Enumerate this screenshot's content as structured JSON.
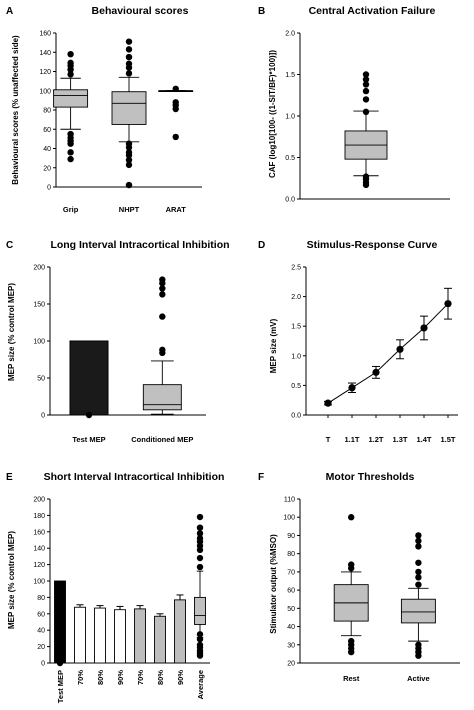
{
  "charts": {
    "chart_data": [
      {
        "id": "A",
        "type": "box",
        "title": "Behavioural scores",
        "ylabel": "Behavioural scores (% unaffected side)",
        "ylim": [
          0,
          160
        ],
        "yticks": [
          "0",
          "20",
          "40",
          "60",
          "80",
          "100",
          "120",
          "140",
          "160"
        ],
        "categories": [
          "Grip",
          "NHPT",
          "ARAT"
        ],
        "boxes": [
          {
            "name": "Grip",
            "q1": 83,
            "median": 95,
            "q3": 101,
            "whisker_low": 60,
            "whisker_high": 113,
            "outliers": [
              29,
              36,
              45,
              48,
              51,
              55,
              117,
              122,
              126,
              129,
              138
            ]
          },
          {
            "name": "NHPT",
            "q1": 65,
            "median": 87,
            "q3": 99,
            "whisker_low": 47,
            "whisker_high": 114,
            "outliers": [
              2,
              23,
              28,
              33,
              36,
              41,
              45,
              118,
              124,
              128,
              135,
              143,
              151
            ]
          },
          {
            "name": "ARAT",
            "q1": 100,
            "median": 100,
            "q3": 100,
            "whisker_low": 100,
            "whisker_high": 100,
            "outliers": [
              52,
              81,
              85,
              88,
              102
            ]
          }
        ]
      },
      {
        "id": "B",
        "type": "box",
        "title": "Central Activation Failure",
        "ylabel": "CAF (log10[100- ((1-SIT/BF)*100)])",
        "ylim": [
          0,
          2.0
        ],
        "yticks": [
          "0.0",
          "0.5",
          "1.0",
          "1.5",
          "2.0"
        ],
        "categories": [
          ""
        ],
        "boxes": [
          {
            "name": "",
            "q1": 0.48,
            "median": 0.65,
            "q3": 0.82,
            "whisker_low": 0.28,
            "whisker_high": 1.06,
            "outliers": [
              0.17,
              0.2,
              0.24,
              0.27,
              1.05,
              1.2,
              1.3,
              1.38,
              1.44,
              1.5
            ]
          }
        ]
      },
      {
        "id": "C",
        "type": "bar+box",
        "title": "Long Interval Intracortical Inhibition",
        "ylabel": "MEP size (% control MEP)",
        "ylim": [
          0,
          200
        ],
        "yticks": [
          "0",
          "50",
          "100",
          "150",
          "200"
        ],
        "categories": [
          "Test MEP",
          "Conditioned MEP"
        ],
        "bar": {
          "name": "Test MEP",
          "value": 100,
          "outliers": [
            0
          ]
        },
        "boxes": [
          {
            "name": "Conditioned MEP",
            "q1": 7,
            "median": 14,
            "q3": 41,
            "whisker_low": 1,
            "whisker_high": 73,
            "outliers": [
              84,
              88,
              133,
              163,
              171,
              178,
              183
            ]
          }
        ]
      },
      {
        "id": "D",
        "type": "line",
        "title": "Stimulus-Response Curve",
        "ylabel": "MEP size (mV)",
        "ylim": [
          0,
          2.5
        ],
        "yticks": [
          "0.0",
          "0.5",
          "1.0",
          "1.5",
          "2.0",
          "2.5"
        ],
        "categories": [
          "T",
          "1.1T",
          "1.2T",
          "1.3T",
          "1.4T",
          "1.5T"
        ],
        "values": [
          0.2,
          0.46,
          0.72,
          1.11,
          1.47,
          1.88
        ],
        "errors": [
          0.03,
          0.08,
          0.1,
          0.16,
          0.2,
          0.26
        ]
      },
      {
        "id": "E",
        "type": "bar+box",
        "title": "Short Interval Intracortical Inhibition",
        "ylabel": "MEP size (% control MEP)",
        "ylim": [
          0,
          200
        ],
        "yticks": [
          "0",
          "20",
          "40",
          "60",
          "80",
          "100",
          "120",
          "140",
          "160",
          "180",
          "200"
        ],
        "categories": [
          "Test MEP",
          "70%",
          "80%",
          "90%",
          "70%",
          "80%",
          "90%",
          "Average"
        ],
        "bars": [
          {
            "label": "Test MEP",
            "value": 100,
            "error": 0,
            "fill": "#000000"
          },
          {
            "label": "70%",
            "value": 68,
            "error": 3,
            "fill": "#ffffff"
          },
          {
            "label": "80%",
            "value": 67,
            "error": 3,
            "fill": "#ffffff"
          },
          {
            "label": "90%",
            "value": 65,
            "error": 4,
            "fill": "#ffffff"
          },
          {
            "label": "70%",
            "value": 66,
            "error": 4,
            "fill": "#bdbdbd"
          },
          {
            "label": "80%",
            "value": 57,
            "error": 3,
            "fill": "#bdbdbd"
          },
          {
            "label": "90%",
            "value": 77,
            "error": 6,
            "fill": "#bdbdbd"
          }
        ],
        "bar_outliers": [
          0
        ],
        "boxes": [
          {
            "name": "Average",
            "q1": 47,
            "median": 58,
            "q3": 80,
            "whisker_low": 31,
            "whisker_high": 112,
            "outliers": [
              9,
              12,
              15,
              19,
              22,
              29,
              35,
              117,
              128,
              138,
              143,
              148,
              152,
              158,
              165,
              178
            ]
          }
        ]
      },
      {
        "id": "F",
        "type": "box",
        "title": "Motor Thresholds",
        "ylabel": "Stimulator output (%MSO)",
        "ylim": [
          20,
          110
        ],
        "yticks": [
          "20",
          "30",
          "40",
          "50",
          "60",
          "70",
          "80",
          "90",
          "100",
          "110"
        ],
        "categories": [
          "Rest",
          "Active"
        ],
        "boxes": [
          {
            "name": "Rest",
            "q1": 43,
            "median": 53,
            "q3": 63,
            "whisker_low": 35,
            "whisker_high": 70,
            "outliers": [
              26,
              28,
              30,
              32,
              72,
              74,
              100
            ]
          },
          {
            "name": "Active",
            "q1": 42,
            "median": 48,
            "q3": 55,
            "whisker_low": 32,
            "whisker_high": 61,
            "outliers": [
              24,
              26,
              28,
              30,
              63,
              67,
              70,
              75,
              84,
              87,
              90
            ]
          }
        ]
      }
    ]
  },
  "colors": {
    "box_fill": "#c0c0c0",
    "black": "#000000",
    "dark_bar": "#1a1a1a"
  }
}
